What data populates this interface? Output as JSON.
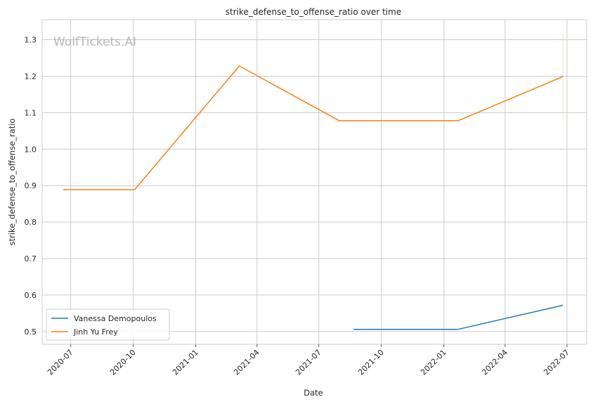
{
  "chart_data": {
    "type": "line",
    "title": "strike_defense_to_offense_ratio over time",
    "xlabel": "Date",
    "ylabel": "strike_defense_to_offense_ratio",
    "watermark": "WolfTickets.AI",
    "x_ticks": [
      "2020-07",
      "2020-10",
      "2021-01",
      "2021-04",
      "2021-07",
      "2021-10",
      "2022-01",
      "2022-04",
      "2022-07"
    ],
    "y_ticks": [
      "0.5",
      "0.6",
      "0.7",
      "0.8",
      "0.9",
      "1.0",
      "1.1",
      "1.2",
      "1.3"
    ],
    "xlim": [
      "2020-05-20",
      "2022-07-30"
    ],
    "ylim": [
      0.465,
      1.355
    ],
    "grid": true,
    "legend_position": "lower-left",
    "series": [
      {
        "name": "Vanessa Demopoulos",
        "color": "#1f77b4",
        "points": [
          {
            "x": "2021-08-21",
            "y": 0.506
          },
          {
            "x": "2022-01-22",
            "y": 0.506
          },
          {
            "x": "2022-06-25",
            "y": 0.572
          }
        ]
      },
      {
        "name": "Jinh Yu Frey",
        "color": "#ff7f0e",
        "points": [
          {
            "x": "2020-06-20",
            "y": 0.889
          },
          {
            "x": "2020-10-03",
            "y": 0.889
          },
          {
            "x": "2021-03-06",
            "y": 1.228
          },
          {
            "x": "2021-07-31",
            "y": 1.078
          },
          {
            "x": "2022-01-22",
            "y": 1.078
          },
          {
            "x": "2022-06-25",
            "y": 1.199
          }
        ],
        "error_bar": {
          "x": "2022-06-25",
          "low": 1.077,
          "high": 1.318
        }
      }
    ]
  }
}
